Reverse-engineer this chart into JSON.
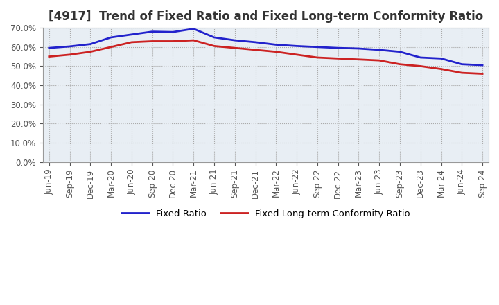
{
  "title": "[4917]  Trend of Fixed Ratio and Fixed Long-term Conformity Ratio",
  "x_labels": [
    "Jun-19",
    "Sep-19",
    "Dec-19",
    "Mar-20",
    "Jun-20",
    "Sep-20",
    "Dec-20",
    "Mar-21",
    "Jun-21",
    "Sep-21",
    "Dec-21",
    "Mar-22",
    "Jun-22",
    "Sep-22",
    "Dec-22",
    "Mar-23",
    "Jun-23",
    "Sep-23",
    "Dec-23",
    "Mar-24",
    "Jun-24",
    "Sep-24"
  ],
  "fixed_ratio": [
    59.5,
    60.3,
    61.5,
    65.0,
    66.5,
    68.0,
    67.8,
    69.5,
    65.0,
    63.5,
    62.5,
    61.2,
    60.5,
    60.0,
    59.5,
    59.2,
    58.5,
    57.5,
    54.5,
    54.0,
    51.0,
    50.5
  ],
  "fixed_lt_ratio": [
    55.0,
    56.0,
    57.5,
    60.0,
    62.5,
    63.0,
    63.0,
    63.5,
    60.5,
    59.5,
    58.5,
    57.5,
    56.0,
    54.5,
    54.0,
    53.5,
    53.0,
    51.0,
    50.0,
    48.5,
    46.5,
    46.0
  ],
  "fixed_ratio_color": "#2222CC",
  "fixed_lt_ratio_color": "#CC2222",
  "ylim": [
    0,
    70
  ],
  "yticks": [
    0,
    10,
    20,
    30,
    40,
    50,
    60,
    70
  ],
  "plot_bg_color": "#E8EEF4",
  "fig_bg_color": "#FFFFFF",
  "grid_color": "#AAAAAA",
  "line_width": 2.0,
  "legend_fixed_ratio": "Fixed Ratio",
  "legend_fixed_lt": "Fixed Long-term Conformity Ratio",
  "title_fontsize": 12,
  "tick_fontsize": 8.5,
  "legend_fontsize": 9.5
}
